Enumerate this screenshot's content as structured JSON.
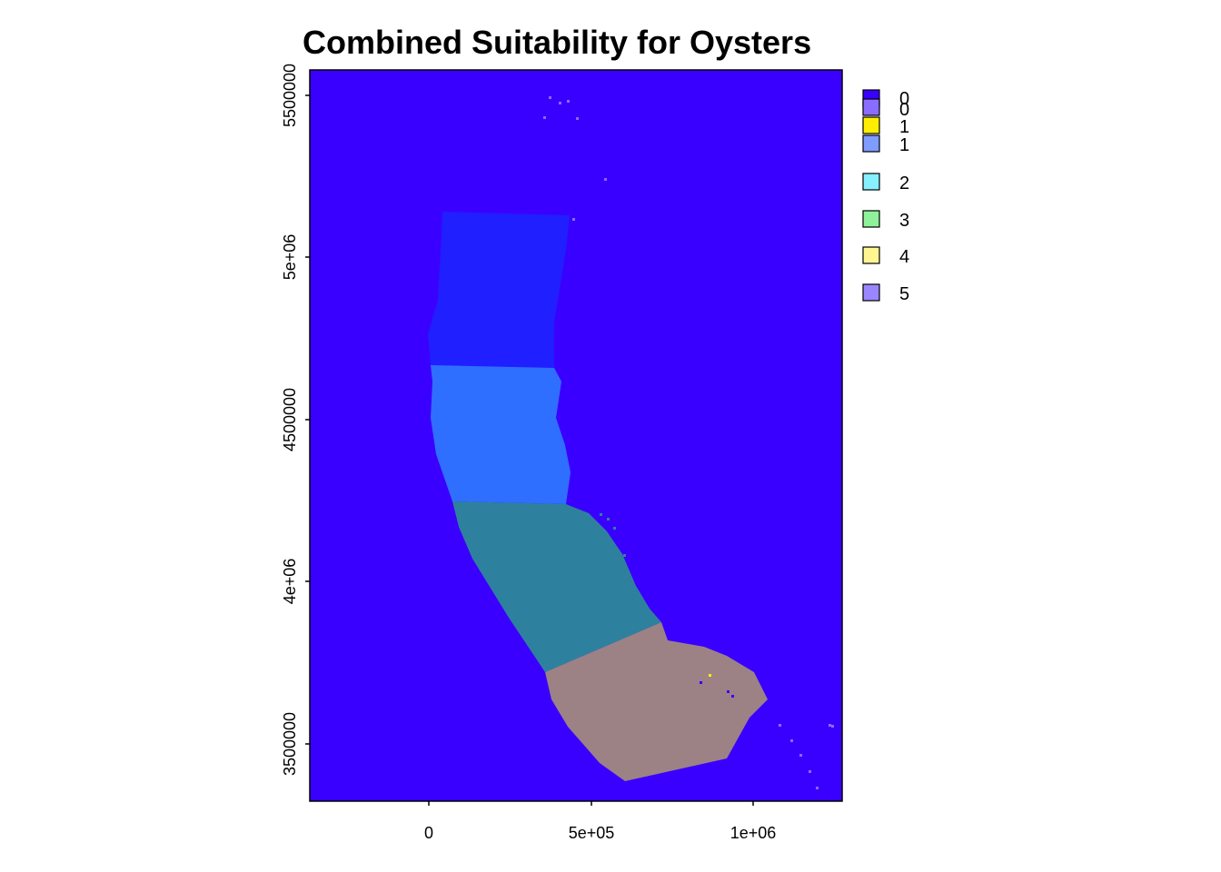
{
  "title": "Combined Suitability for Oysters",
  "map": {
    "x_ticks": [
      "0",
      "5e+05",
      "1e+06"
    ],
    "y_ticks": [
      "3500000",
      "4e+06",
      "4500000",
      "5e+06",
      "5500000"
    ],
    "background_color": "#3a00ff",
    "regions": [
      {
        "name": "northern-region",
        "color": "#1f1fff"
      },
      {
        "name": "central-north-region",
        "color": "#2f6fff"
      },
      {
        "name": "central-south-region",
        "color": "#2e819e"
      },
      {
        "name": "southern-region",
        "color": "#9c8285"
      }
    ]
  },
  "legend": {
    "items": [
      {
        "label": "0",
        "color": "#3a00ff"
      },
      {
        "label": "0",
        "color": "#8a6cff"
      },
      {
        "label": "1",
        "color": "#ffee00"
      },
      {
        "label": "1",
        "color": "#7f9cff"
      },
      {
        "label": "2",
        "color": "#86f0ff"
      },
      {
        "label": "3",
        "color": "#8ef29a"
      },
      {
        "label": "4",
        "color": "#fff591"
      },
      {
        "label": "5",
        "color": "#9a86ff"
      }
    ]
  }
}
